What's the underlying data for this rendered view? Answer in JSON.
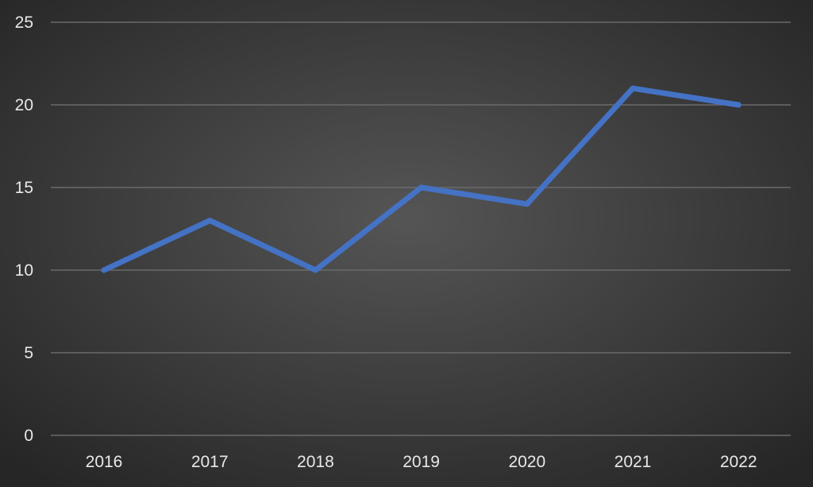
{
  "chart_data": {
    "type": "line",
    "title": "",
    "xlabel": "",
    "ylabel": "",
    "categories": [
      "2016",
      "2017",
      "2018",
      "2019",
      "2020",
      "2021",
      "2022"
    ],
    "series": [
      {
        "values": [
          10,
          13,
          10,
          15,
          14,
          21,
          20
        ],
        "color": "#4472c4"
      }
    ],
    "ylim": [
      0,
      25
    ],
    "yticks": [
      0,
      5,
      10,
      15,
      20,
      25
    ],
    "grid": true,
    "legend": "none",
    "colors": {
      "background_center": "#555555",
      "background_edge": "#262626",
      "gridline": "#6a6a6a",
      "text": "#e8e8e8"
    }
  }
}
